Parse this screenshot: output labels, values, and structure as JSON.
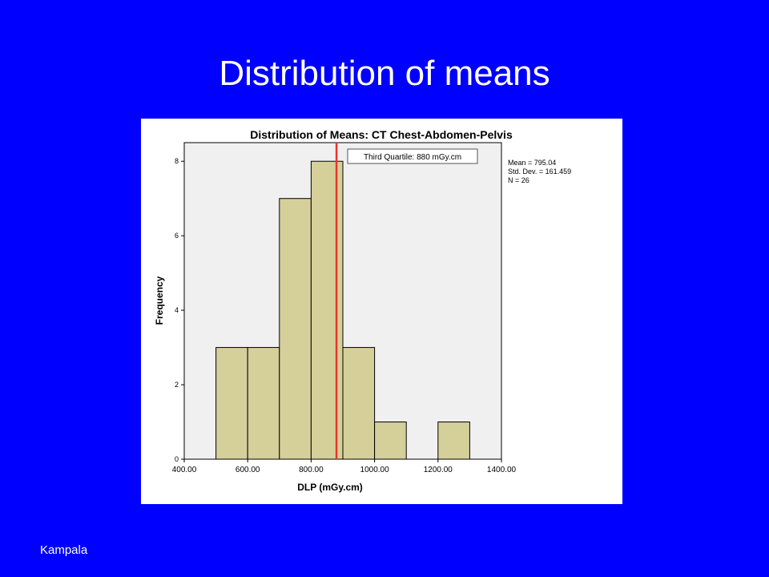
{
  "slide": {
    "title": "Distribution of means",
    "footer": "Kampala"
  },
  "colors": {
    "background": "#0000FF",
    "plot_area": "#F0F0F0",
    "bar_fill": "#D5CF9A",
    "bar_stroke": "#000000",
    "reference_line": "#E4352B"
  },
  "chart_data": {
    "type": "bar",
    "subtype": "histogram",
    "title": "Distribution of Means: CT Chest-Abdomen-Pelvis",
    "xlabel": "DLP (mGy.cm)",
    "ylabel": "Frequency",
    "xlim": [
      400,
      1400
    ],
    "ylim": [
      0,
      8.5
    ],
    "x_ticks": [
      400,
      600,
      800,
      1000,
      1200,
      1400
    ],
    "x_tick_labels": [
      "400.00",
      "600.00",
      "800.00",
      "1000.00",
      "1200.00",
      "1400.00"
    ],
    "y_ticks": [
      0,
      2,
      4,
      6,
      8
    ],
    "y_tick_labels": [
      "0",
      "2",
      "4",
      "6",
      "8"
    ],
    "bins": [
      {
        "start": 500,
        "end": 600,
        "count": 3
      },
      {
        "start": 600,
        "end": 700,
        "count": 3
      },
      {
        "start": 700,
        "end": 800,
        "count": 7
      },
      {
        "start": 800,
        "end": 900,
        "count": 8
      },
      {
        "start": 900,
        "end": 1000,
        "count": 3
      },
      {
        "start": 1000,
        "end": 1100,
        "count": 1
      },
      {
        "start": 1100,
        "end": 1200,
        "count": 0
      },
      {
        "start": 1200,
        "end": 1300,
        "count": 1
      }
    ],
    "reference_line": {
      "x": 880,
      "label": "Third Quartile: 880 mGy.cm"
    },
    "stats": [
      "Mean = 795.04",
      "Std. Dev. = 161.459",
      "N = 26"
    ],
    "grid": false
  }
}
